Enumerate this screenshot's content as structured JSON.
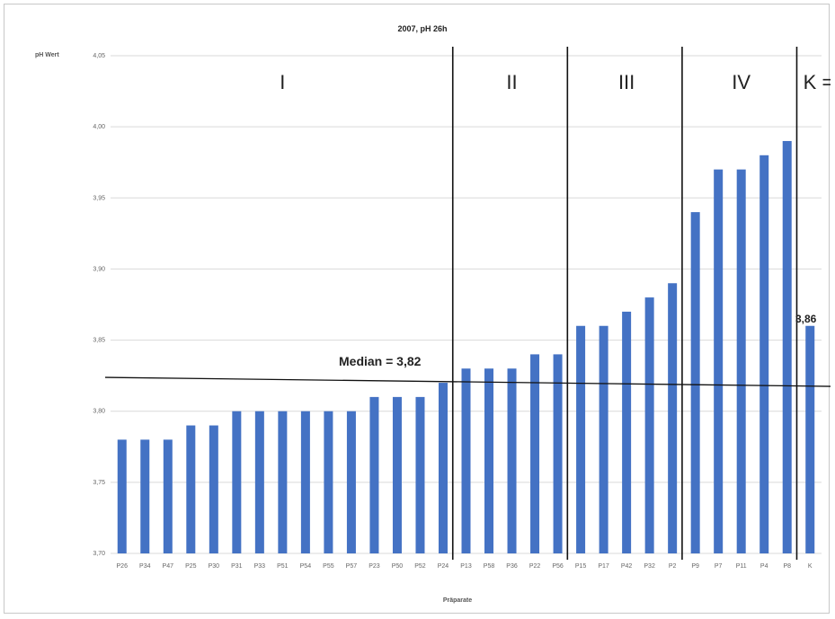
{
  "chart_data": {
    "type": "bar",
    "title": "2007, pH 26h",
    "ylabel": "pH Wert",
    "xlabel": "Präparate",
    "ylim": [
      3.7,
      4.05
    ],
    "yticks": [
      "3,70",
      "3,75",
      "3,80",
      "3,85",
      "3,90",
      "3,95",
      "4,00",
      "4,05"
    ],
    "grid": true,
    "bar_color": "#4472c4",
    "categories": [
      "P26",
      "P34",
      "P47",
      "P25",
      "P30",
      "P31",
      "P33",
      "P51",
      "P54",
      "P55",
      "P57",
      "P23",
      "P50",
      "P52",
      "P24",
      "P13",
      "P58",
      "P36",
      "P22",
      "P56",
      "P15",
      "P17",
      "P42",
      "P32",
      "P2",
      "P9",
      "P7",
      "P11",
      "P4",
      "P8",
      "K"
    ],
    "values": [
      3.78,
      3.78,
      3.78,
      3.79,
      3.79,
      3.8,
      3.8,
      3.8,
      3.8,
      3.8,
      3.8,
      3.81,
      3.81,
      3.81,
      3.82,
      3.83,
      3.83,
      3.83,
      3.84,
      3.84,
      3.86,
      3.86,
      3.87,
      3.88,
      3.89,
      3.94,
      3.97,
      3.97,
      3.98,
      3.99,
      3.86
    ],
    "sections": [
      "I",
      "II",
      "III",
      "IV",
      "K ="
    ],
    "median": {
      "label": "Median = 3,82",
      "value": 3.82
    },
    "data_label": "3,86"
  }
}
